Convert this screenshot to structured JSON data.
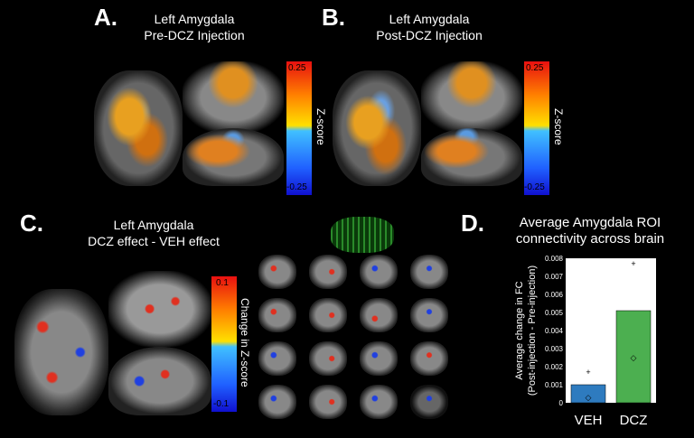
{
  "panels": {
    "A": {
      "letter": "A.",
      "title_line1": "Left Amygdala",
      "title_line2": "Pre-DCZ Injection",
      "cbar_max": "0.25",
      "cbar_min": "-0.25",
      "cbar_label": "Z-score"
    },
    "B": {
      "letter": "B.",
      "title_line1": "Left Amygdala",
      "title_line2": "Post-DCZ Injection",
      "cbar_max": "0.25",
      "cbar_min": "-0.25",
      "cbar_label": "Z-score"
    },
    "C": {
      "letter": "C.",
      "title_line1": "Left Amygdala",
      "title_line2": "DCZ effect - VEH effect",
      "cbar_max": "0.1",
      "cbar_min": "-0.1",
      "cbar_label": "Change in Z-score"
    },
    "D": {
      "letter": "D.",
      "title_line1": "Average Amygdala ROI",
      "title_line2": "connectivity across brain"
    }
  },
  "colors": {
    "veh": "#2e7bbf",
    "dcz": "#4caf50",
    "hot": "#ff8c00",
    "cold": "#3b6bff"
  },
  "chart_data": {
    "type": "bar",
    "categories": [
      "VEH",
      "DCZ"
    ],
    "values": [
      0.001,
      0.0051
    ],
    "maxima": [
      0.0017,
      0.0077
    ],
    "diamonds": [
      0.0003,
      0.0025
    ],
    "ylabel_line1": "Average change in FC",
    "ylabel_line2": "(Post-injection - Pre-injection)",
    "ylim": [
      0,
      0.008
    ],
    "yticks": [
      "0",
      "0.001",
      "0.002",
      "0.003",
      "0.004",
      "0.005",
      "0.006",
      "0.007",
      "0.008"
    ],
    "grid": false
  }
}
